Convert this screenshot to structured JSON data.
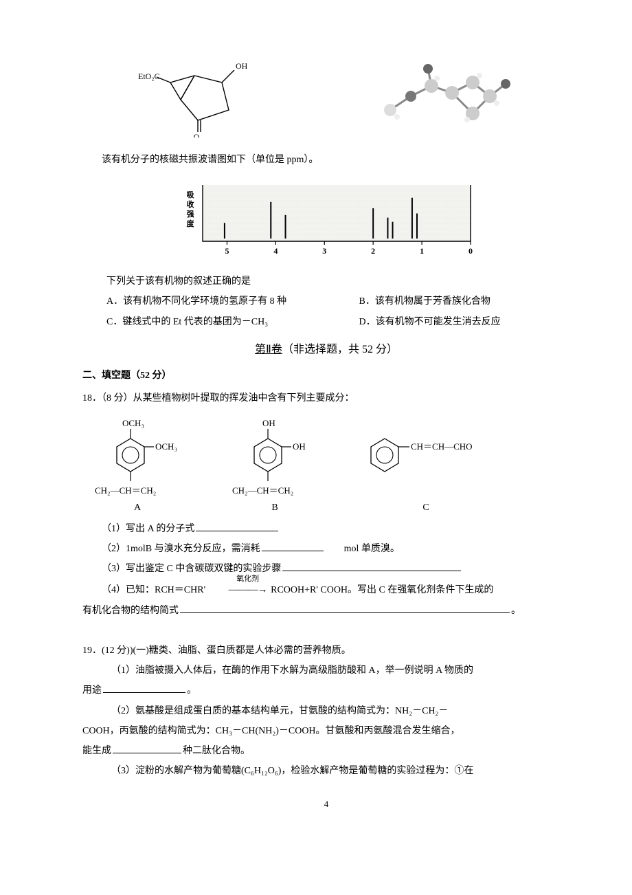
{
  "top": {
    "structure_labels": {
      "eto2c": "EtO₂C",
      "oh": "OH",
      "o": "O"
    },
    "nmr_caption": "该有机分子的核磁共振波谱图如下（单位是 ppm）。",
    "nmr": {
      "axis_label_vertical": "吸收强度",
      "xticks": [
        "5",
        "4",
        "3",
        "2",
        "1",
        "0"
      ],
      "peaks": [
        {
          "x": 5.05,
          "h": 0.3
        },
        {
          "x": 4.1,
          "h": 0.7
        },
        {
          "x": 3.8,
          "h": 0.45
        },
        {
          "x": 2.0,
          "h": 0.58
        },
        {
          "x": 1.7,
          "h": 0.4
        },
        {
          "x": 1.6,
          "h": 0.32
        },
        {
          "x": 1.2,
          "h": 0.78
        },
        {
          "x": 1.1,
          "h": 0.48
        }
      ],
      "x_range": [
        0,
        5.5
      ],
      "bg_color": "#f2f2ee",
      "frame_color": "#000000",
      "peak_color": "#000000",
      "tick_font_size": 12
    },
    "stem": "下列关于该有机物的叙述正确的是",
    "opts": {
      "A": "A．该有机物不同化学环境的氢原子有 8 种",
      "B": "B．该有机物属于芳香族化合物",
      "C": "C．键线式中的 Et 代表的基团为－CH₃",
      "D": "D．该有机物不可能发生消去反应"
    }
  },
  "partII": {
    "title_underlined": "第Ⅱ卷",
    "title_rest": "（非选择题，共 52 分）",
    "subheading": "二、填空题（52 分）"
  },
  "q18": {
    "num": "18．",
    "stem": "（8 分）从某些植物树叶提取的挥发油中含有下列主要成分：",
    "structures": {
      "A_top": "OCH₃",
      "A_side": "OCH₃",
      "A_bottom": "CH₂—CH＝CH₂",
      "B_top": "OH",
      "B_side": "OH",
      "B_bottom": "CH₂—CH＝CH₂",
      "C_side": "CH＝CH—CHO",
      "labels": {
        "A": "A",
        "B": "B",
        "C": "C"
      }
    },
    "p1_pre": "（1）写出 A 的分子式",
    "p2_pre": "（2）1molB 与溴水充分反应，需消耗",
    "p2_post": "mol 单质溴。",
    "p3_pre": "（3）写出鉴定 C 中含碳碳双键的实验步骤",
    "p4_pre": "（4）已知：RCH＝CHR'",
    "p4_arrow_top": "氧化剂",
    "p4_mid": " RCOOH+R' COOH。写出 C 在强氧化剂条件下生成的",
    "p4_line2": "有机化合物的结构简式",
    "p4_tail": "。"
  },
  "q19": {
    "num": "19．",
    "stem": "(12 分))(一)糖类、油脂、蛋白质都是人体必需的营养物质。",
    "p1a": "（1）油脂被摄入人体后，在酶的作用下水解为高级脂肪酸和 A，举一例说明 A 物质的",
    "p1b_pre": "用途",
    "p1b_post": "。",
    "p2a": "（2）氨基酸是组成蛋白质的基本结构单元，甘氨酸的结构简式为：NH₂－CH₂－",
    "p2b": "COOH，丙氨酸的结构简式为：CH₃－CH(NH₂)－COOH。甘氨酸和丙氨酸混合发生缩合，",
    "p2c_pre": "能生成",
    "p2c_post": " 种二肽化合物。",
    "p3": "（3）淀粉的水解产物为葡萄糖(C₆H₁₂O₆)，检验水解产物是葡萄糖的实验过程为：①在"
  },
  "page_number": "4"
}
